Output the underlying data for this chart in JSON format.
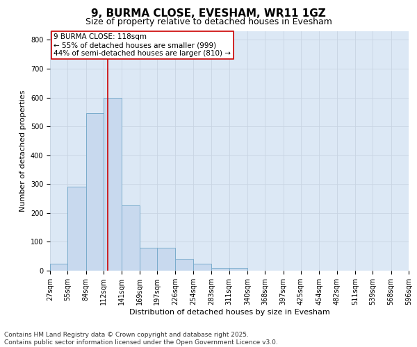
{
  "title": "9, BURMA CLOSE, EVESHAM, WR11 1GZ",
  "subtitle": "Size of property relative to detached houses in Evesham",
  "xlabel": "Distribution of detached houses by size in Evesham",
  "ylabel": "Number of detached properties",
  "bin_labels": [
    "27sqm",
    "55sqm",
    "84sqm",
    "112sqm",
    "141sqm",
    "169sqm",
    "197sqm",
    "226sqm",
    "254sqm",
    "283sqm",
    "311sqm",
    "340sqm",
    "368sqm",
    "397sqm",
    "425sqm",
    "454sqm",
    "482sqm",
    "511sqm",
    "539sqm",
    "568sqm",
    "596sqm"
  ],
  "bin_edges": [
    27,
    55,
    84,
    112,
    141,
    169,
    197,
    226,
    254,
    283,
    311,
    340,
    368,
    397,
    425,
    454,
    482,
    511,
    539,
    568,
    596
  ],
  "bar_values": [
    25,
    290,
    545,
    600,
    225,
    80,
    80,
    40,
    25,
    10,
    10,
    0,
    0,
    0,
    0,
    0,
    0,
    0,
    0,
    0
  ],
  "bar_color": "#c8d9ee",
  "bar_edgecolor": "#7aaccc",
  "bar_linewidth": 0.7,
  "vline_x": 118,
  "vline_color": "#cc0000",
  "vline_linewidth": 1.2,
  "annotation_text": "9 BURMA CLOSE: 118sqm\n← 55% of detached houses are smaller (999)\n44% of semi-detached houses are larger (810) →",
  "annotation_box_facecolor": "#ffffff",
  "annotation_box_edgecolor": "#cc0000",
  "ylim": [
    0,
    830
  ],
  "yticks": [
    0,
    100,
    200,
    300,
    400,
    500,
    600,
    700,
    800
  ],
  "grid_color": "#c8d4e3",
  "bg_color": "#dce8f5",
  "footnote": "Contains HM Land Registry data © Crown copyright and database right 2025.\nContains public sector information licensed under the Open Government Licence v3.0.",
  "title_fontsize": 11,
  "subtitle_fontsize": 9,
  "axis_label_fontsize": 8,
  "tick_fontsize": 7,
  "annotation_fontsize": 7.5,
  "footnote_fontsize": 6.5
}
